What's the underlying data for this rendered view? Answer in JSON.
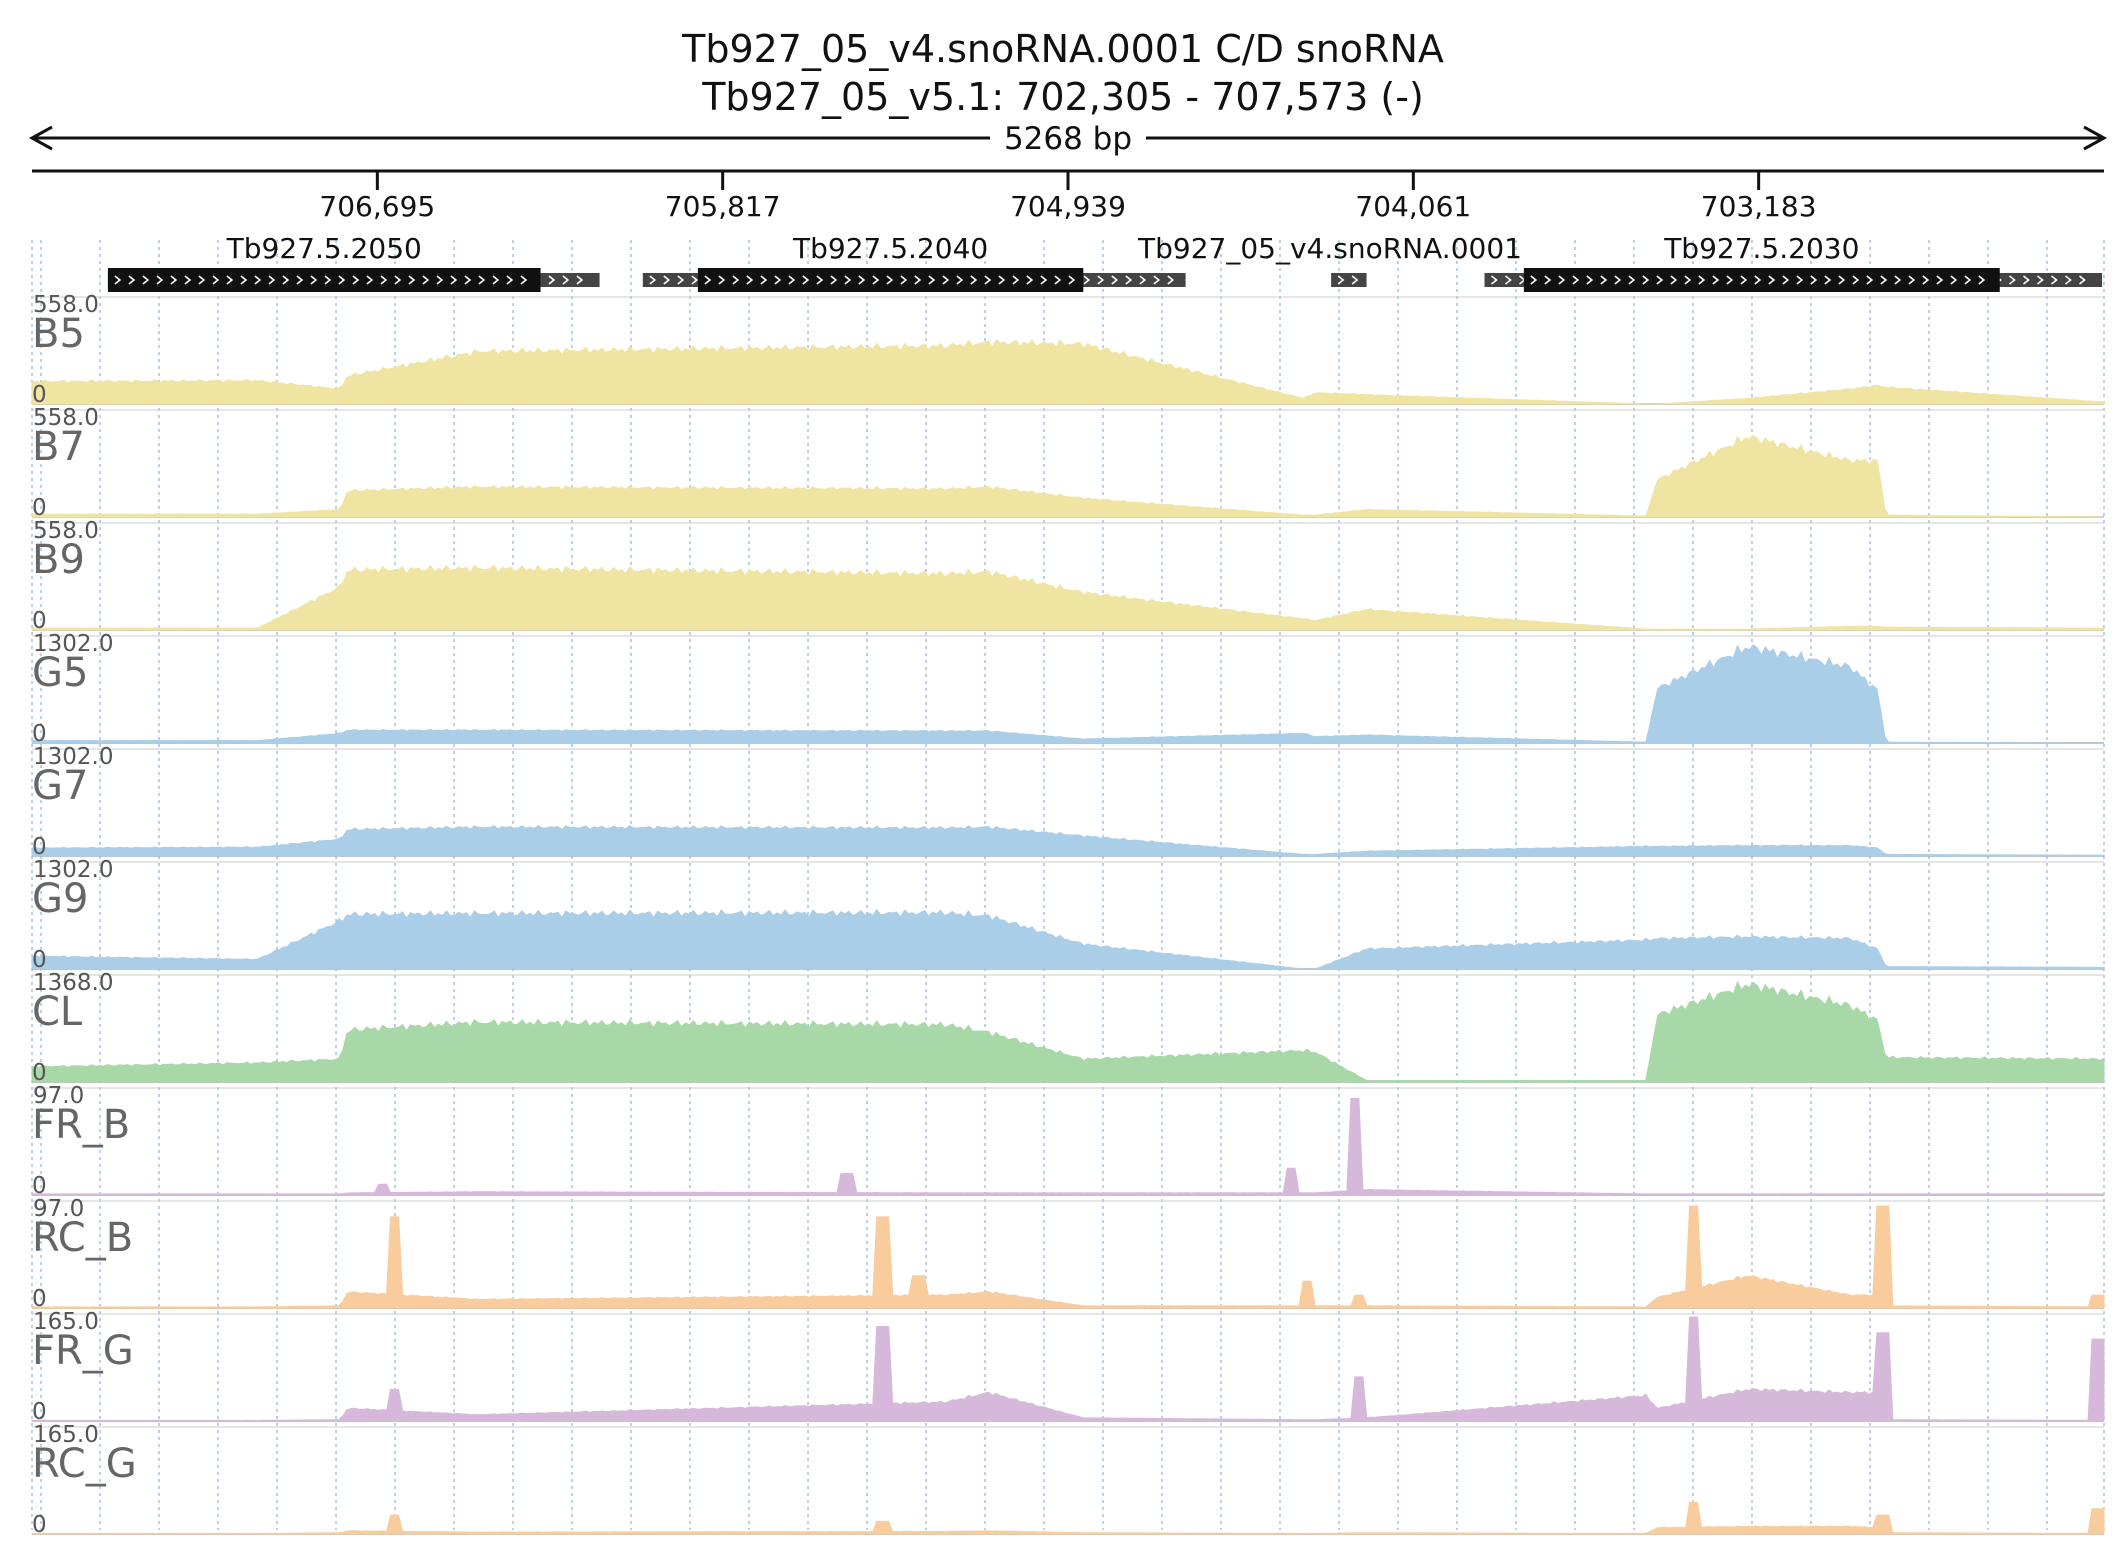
{
  "title": {
    "line1": "Tb927_05_v4.snoRNA.0001  C/D snoRNA",
    "line2": "Tb927_05_v5.1: 702,305 - 707,573 (-)"
  },
  "span_label": "5268 bp",
  "chart_data": {
    "type": "area",
    "x_axis": {
      "reversed": true,
      "range": [
        707573,
        702305
      ],
      "tick_values": [
        706695,
        705817,
        704939,
        704061,
        703183
      ],
      "tick_labels": [
        "706,695",
        "705,817",
        "704,939",
        "704,061",
        "703,183"
      ],
      "gridlines": "dotted, every 150 bp"
    },
    "genes": [
      {
        "name": "Tb927.5.2050",
        "start": 707380,
        "end": 706130,
        "cds": [
          707380,
          706280
        ]
      },
      {
        "name": "Tb927.5.2040",
        "start": 706020,
        "end": 704640,
        "cds": [
          705880,
          704900
        ]
      },
      {
        "name": "Tb927_05_v4.snoRNA.0001",
        "start": 704270,
        "end": 704180,
        "cds": null,
        "label_only_feature": true
      },
      {
        "name": "Tb927.5.2030",
        "start": 703880,
        "end": 702310,
        "cds": [
          703780,
          702570
        ]
      }
    ],
    "breakpoints": [
      707573,
      707000,
      706790,
      706770,
      706440,
      705250,
      705140,
      704900,
      704340,
      704310,
      704180,
      703470,
      703440,
      703210,
      702950,
      702880,
      702860,
      702300
    ],
    "tracks": [
      {
        "name": "B5",
        "max_label": "558.0",
        "zero_label": "0",
        "max": 558,
        "color": "#efe4a2",
        "values": [
          120,
          125,
          80,
          150,
          280,
          310,
          330,
          320,
          30,
          60,
          50,
          0,
          0,
          30,
          80,
          100,
          90,
          10
        ]
      },
      {
        "name": "B7",
        "max_label": "558.0",
        "zero_label": "0",
        "max": 558,
        "color": "#efe4a2",
        "values": [
          15,
          15,
          40,
          140,
          160,
          150,
          160,
          100,
          10,
          10,
          40,
          5,
          200,
          430,
          300,
          300,
          10,
          0
        ]
      },
      {
        "name": "B9",
        "max_label": "558.0",
        "zero_label": "0",
        "max": 558,
        "color": "#efe4a2",
        "values": [
          10,
          10,
          230,
          320,
          330,
          300,
          310,
          200,
          60,
          50,
          110,
          5,
          5,
          5,
          20,
          20,
          15,
          10
        ]
      },
      {
        "name": "G5",
        "max_label": "1302.0",
        "zero_label": "0",
        "max": 1302,
        "color": "#aacde8",
        "values": [
          30,
          30,
          120,
          160,
          160,
          150,
          150,
          50,
          120,
          80,
          100,
          10,
          680,
          1200,
          950,
          650,
          10,
          0
        ]
      },
      {
        "name": "G7",
        "max_label": "1302.0",
        "zero_label": "0",
        "max": 1302,
        "color": "#aacde8",
        "values": [
          100,
          110,
          210,
          330,
          360,
          350,
          360,
          250,
          20,
          20,
          60,
          120,
          120,
          130,
          130,
          100,
          20,
          10
        ]
      },
      {
        "name": "G9",
        "max_label": "1302.0",
        "zero_label": "0",
        "max": 1302,
        "color": "#aacde8",
        "values": [
          160,
          120,
          600,
          680,
          690,
          700,
          660,
          310,
          0,
          0,
          250,
          360,
          380,
          400,
          380,
          250,
          30,
          20
        ]
      },
      {
        "name": "CL",
        "max_label": "1368.0",
        "zero_label": "0",
        "max": 1368,
        "color": "#a9d8a8",
        "values": [
          200,
          250,
          300,
          680,
          780,
          750,
          650,
          300,
          410,
          390,
          20,
          20,
          880,
          1280,
          1000,
          800,
          320,
          300
        ]
      },
      {
        "name": "FR_B",
        "max_label": "97.0",
        "zero_label": "0",
        "max": 97,
        "color": "#d6b8da",
        "values": [
          1,
          1,
          1,
          2,
          3,
          2,
          2,
          2,
          2,
          2,
          5,
          1,
          1,
          1,
          1,
          1,
          1,
          1
        ],
        "spikes": [
          [
            706680,
            10
          ],
          [
            705500,
            20
          ],
          [
            704370,
            25
          ],
          [
            704210,
            90
          ]
        ]
      },
      {
        "name": "RC_B",
        "max_label": "97.0",
        "zero_label": "0",
        "max": 97,
        "color": "#f8cc9c",
        "values": [
          1,
          1,
          2,
          15,
          8,
          12,
          15,
          2,
          2,
          2,
          2,
          1,
          10,
          30,
          12,
          12,
          2,
          1
        ],
        "spikes": [
          [
            706650,
            85
          ],
          [
            705410,
            85
          ],
          [
            705320,
            30
          ],
          [
            704330,
            25
          ],
          [
            704200,
            12
          ],
          [
            703350,
            95
          ],
          [
            702870,
            95
          ],
          [
            702320,
            12
          ]
        ]
      },
      {
        "name": "FR_G",
        "max_label": "165.0",
        "zero_label": "0",
        "max": 165,
        "color": "#d6b8da",
        "values": [
          1,
          1,
          2,
          20,
          10,
          30,
          45,
          5,
          2,
          2,
          5,
          40,
          20,
          50,
          45,
          45,
          2,
          1
        ],
        "spikes": [
          [
            706650,
            50
          ],
          [
            705410,
            150
          ],
          [
            704200,
            70
          ],
          [
            703350,
            165
          ],
          [
            702870,
            140
          ],
          [
            702320,
            130
          ]
        ]
      },
      {
        "name": "RC_G",
        "max_label": "165.0",
        "zero_label": "0",
        "max": 165,
        "color": "#f8cc9c",
        "values": [
          1,
          1,
          2,
          5,
          3,
          4,
          5,
          2,
          1,
          1,
          2,
          1,
          10,
          12,
          12,
          10,
          2,
          1
        ],
        "spikes": [
          [
            706650,
            30
          ],
          [
            705410,
            20
          ],
          [
            703350,
            50
          ],
          [
            702870,
            30
          ],
          [
            702320,
            40
          ]
        ]
      }
    ]
  }
}
